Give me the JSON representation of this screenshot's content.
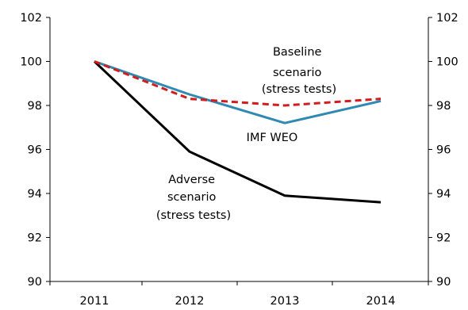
{
  "chart_data": {
    "type": "line",
    "title": "",
    "xlabel": "",
    "ylabel": "",
    "categories": [
      "2011",
      "2012",
      "2013",
      "2014"
    ],
    "ylim": [
      90,
      102
    ],
    "yticks": [
      "90",
      "92",
      "94",
      "96",
      "98",
      "100",
      "102"
    ],
    "y2ticks": [
      "90",
      "92",
      "94",
      "96",
      "98",
      "100",
      "102"
    ],
    "grid": false,
    "legend": "none",
    "series": [
      {
        "name": "IMF WEO",
        "values": [
          100,
          98.5,
          97.2,
          98.2
        ],
        "color": "#2e8ab3",
        "style": "solid"
      },
      {
        "name": "Baseline scenario (stress tests)",
        "values": [
          100,
          98.3,
          98.0,
          98.3
        ],
        "color": "#d11d1d",
        "style": "dashed"
      },
      {
        "name": "Adverse scenario (stress tests)",
        "values": [
          100,
          95.9,
          93.9,
          93.6
        ],
        "color": "#000000",
        "style": "solid"
      }
    ],
    "annotations": [
      {
        "lines": [
          "Baseline",
          "scenario",
          "(stress tests)"
        ]
      },
      {
        "lines": [
          "IMF WEO"
        ]
      },
      {
        "lines": [
          "Adverse",
          "scenario",
          "(stress tests)"
        ]
      }
    ]
  }
}
